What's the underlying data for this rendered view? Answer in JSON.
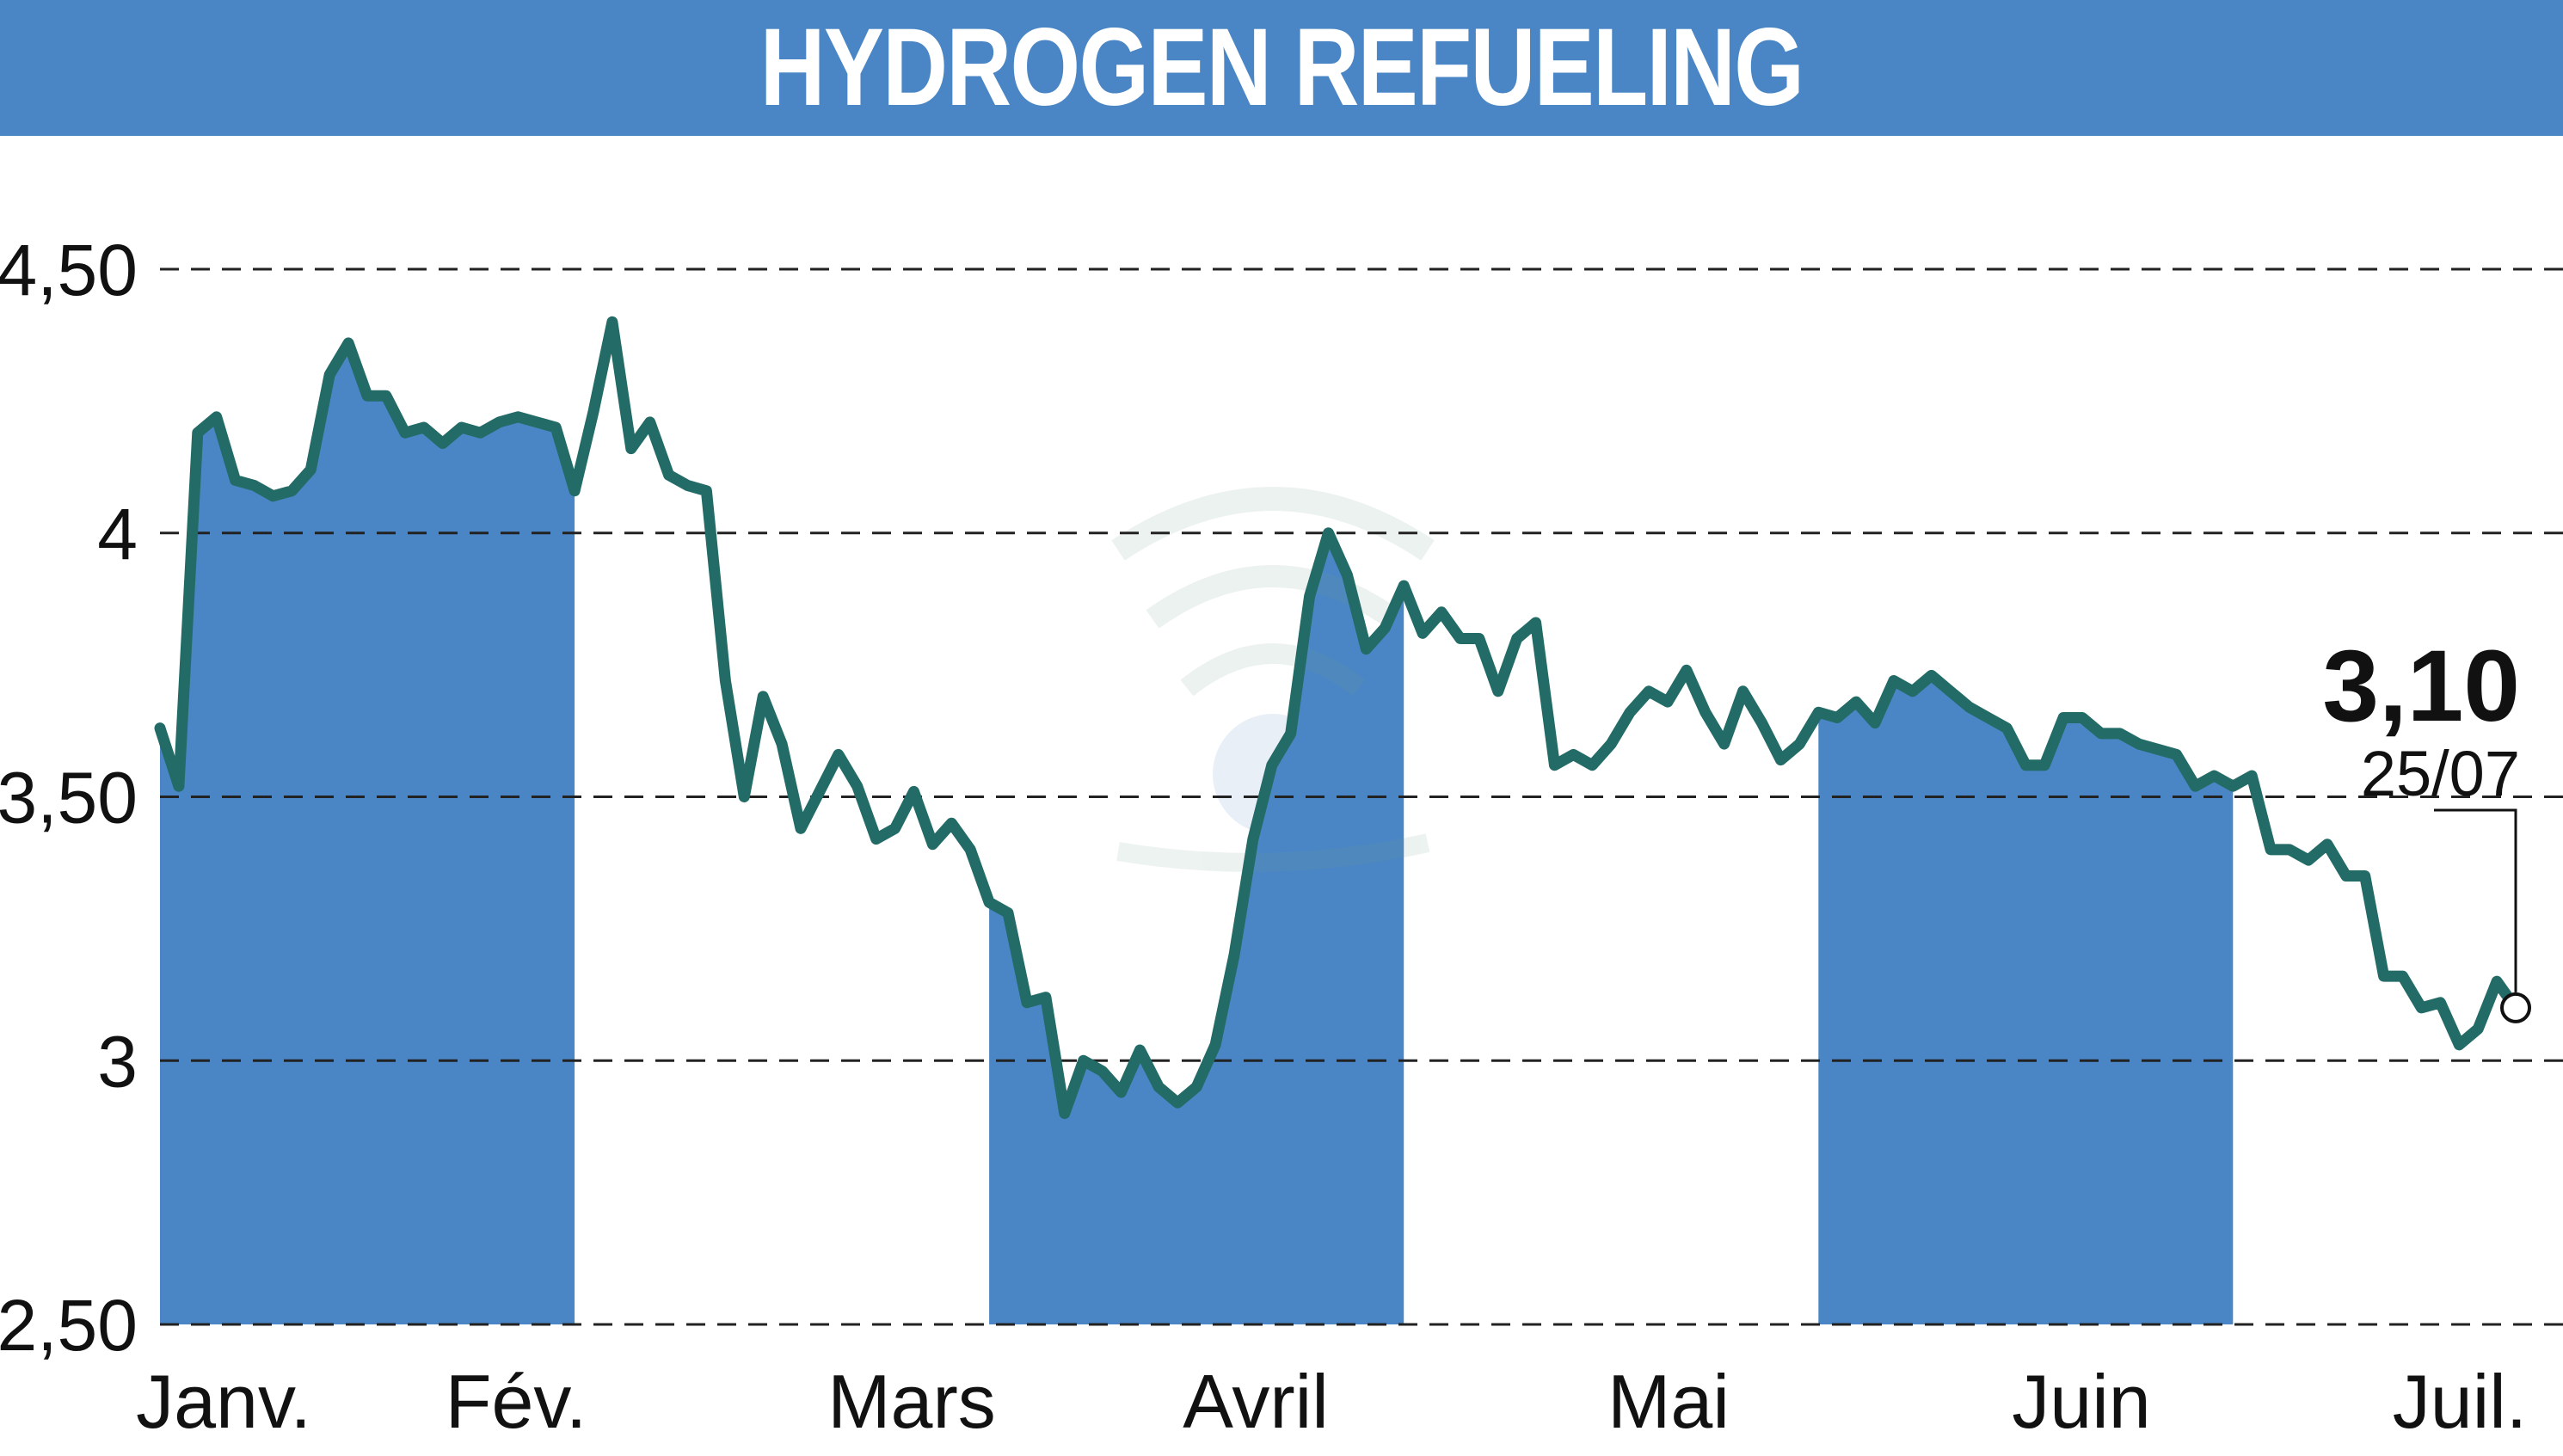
{
  "title": "HYDROGEN REFUELING",
  "chart_data": {
    "type": "line",
    "title": "HYDROGEN REFUELING",
    "xlabel": "",
    "ylabel": "",
    "ylim": [
      2.5,
      4.5
    ],
    "y_ticks": [
      "4,50",
      "4",
      "3,50",
      "3",
      "2,50"
    ],
    "y_tick_values": [
      4.5,
      4.0,
      3.5,
      3.0,
      2.5
    ],
    "months": [
      "Janv.",
      "Fév.",
      "Mars",
      "Avril",
      "Mai",
      "Juin",
      "Juil."
    ],
    "grid": true,
    "line_color": "#236b66",
    "area_color": "#4a86c5",
    "last_value_label": "3,10",
    "last_date_label": "25/07",
    "series": [
      {
        "values": [
          3.63,
          3.52,
          4.19,
          4.22,
          4.1,
          4.09,
          4.07,
          4.08,
          4.12,
          4.3,
          4.36,
          4.26,
          4.26,
          4.19,
          4.2,
          4.17,
          4.2,
          4.19,
          4.21,
          4.22,
          4.21,
          4.2,
          4.08,
          4.23,
          4.4,
          4.16,
          4.21,
          4.11,
          4.09,
          4.08,
          3.72,
          3.5,
          3.69,
          3.6,
          3.44,
          3.51,
          3.58,
          3.52,
          3.42,
          3.44,
          3.51,
          3.41,
          3.45,
          3.4,
          3.3,
          3.28,
          3.11,
          3.12,
          2.9,
          3.0,
          2.98,
          2.94,
          3.02,
          2.95,
          2.92,
          2.95,
          3.03,
          3.2,
          3.42,
          3.56,
          3.62,
          3.88,
          4.0,
          3.92,
          3.78,
          3.82,
          3.9,
          3.81,
          3.85,
          3.8,
          3.8,
          3.7,
          3.8,
          3.83,
          3.56,
          3.58,
          3.56,
          3.6,
          3.66,
          3.7,
          3.68,
          3.74,
          3.66,
          3.6,
          3.7,
          3.64,
          3.57,
          3.6,
          3.66,
          3.65,
          3.68,
          3.64,
          3.72,
          3.7,
          3.73,
          3.7,
          3.67,
          3.65,
          3.63,
          3.56,
          3.56,
          3.65,
          3.65,
          3.62,
          3.62,
          3.6,
          3.59,
          3.58,
          3.52,
          3.54,
          3.52,
          3.54,
          3.4,
          3.4,
          3.38,
          3.41,
          3.35,
          3.35,
          3.16,
          3.16,
          3.1,
          3.11,
          3.03,
          3.06,
          3.15,
          3.1
        ]
      }
    ]
  }
}
